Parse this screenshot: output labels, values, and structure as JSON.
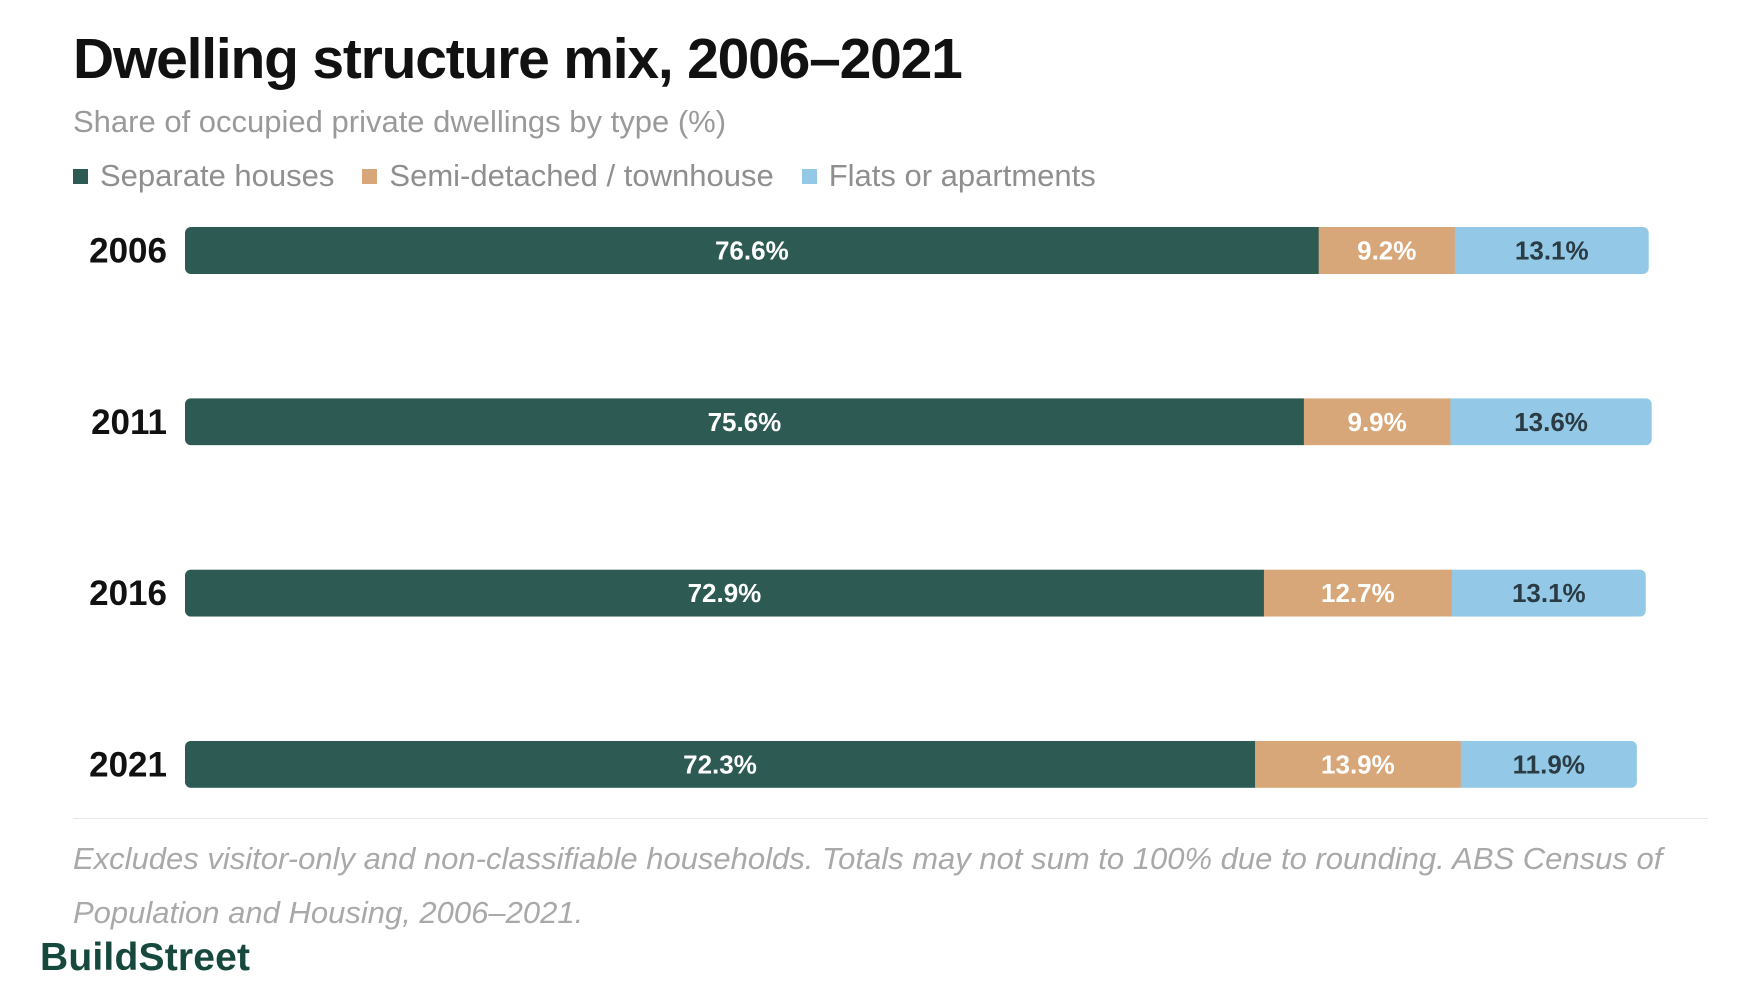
{
  "header": {
    "title": "Dwelling structure mix, 2006–2021",
    "subtitle": "Share of occupied private dwellings by type (%)"
  },
  "legend": [
    {
      "label": "Separate houses",
      "color": "#2d5a52"
    },
    {
      "label": "Semi-detached / townhouse",
      "color": "#d8a779"
    },
    {
      "label": "Flats or apartments",
      "color": "#93c9e6"
    }
  ],
  "chart_data": {
    "type": "bar",
    "orientation": "horizontal",
    "stacked": true,
    "categories": [
      "2006",
      "2011",
      "2016",
      "2021"
    ],
    "series": [
      {
        "name": "Separate houses",
        "color": "#2d5a52",
        "label_color": "#ffffff",
        "values": [
          76.6,
          75.6,
          72.9,
          72.3
        ]
      },
      {
        "name": "Semi-detached / townhouse",
        "color": "#d8a779",
        "label_color": "#ffffff",
        "values": [
          9.2,
          9.9,
          12.7,
          13.9
        ]
      },
      {
        "name": "Flats or apartments",
        "color": "#93c9e6",
        "label_color": "#2b3b44",
        "values": [
          13.1,
          13.6,
          13.1,
          11.9
        ]
      }
    ],
    "value_suffix": "%",
    "xlim": [
      0,
      100
    ],
    "grid": false,
    "legend_position": "top-left"
  },
  "footer": {
    "note": "Excludes visitor-only and non-classifiable households. Totals may not sum to 100% due to rounding. ABS Census of Population and Housing, 2006–2021.",
    "brand": "BuildStreet"
  }
}
